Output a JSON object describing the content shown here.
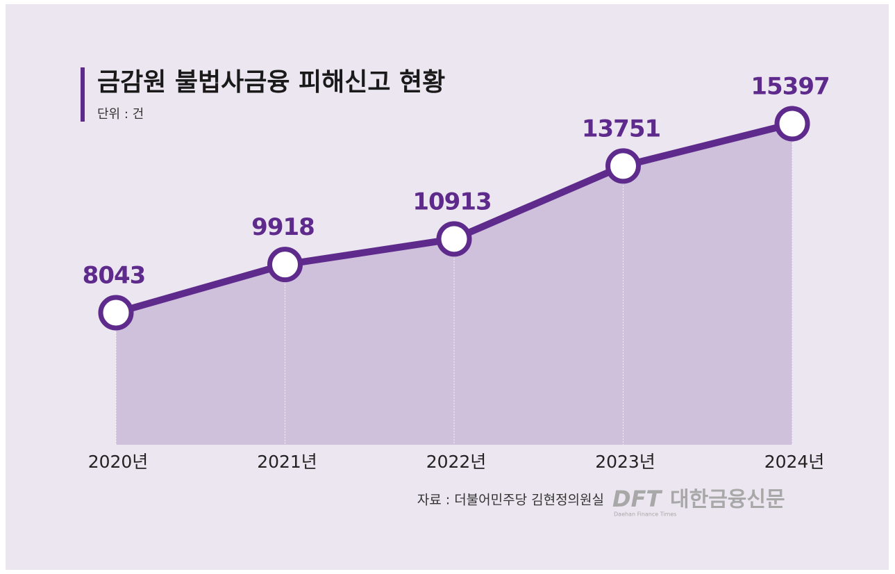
{
  "chart_data": {
    "type": "area-line",
    "title": "금감원 불법사금융 피해신고 현황",
    "subtitle": "단위 : 건",
    "categories": [
      "2020년",
      "2021년",
      "2022년",
      "2023년",
      "2024년"
    ],
    "values": [
      8043,
      9918,
      10913,
      13751,
      15397
    ],
    "color": "#5e2a8c",
    "area_color": "#cfc0dc",
    "source": "자료 : 더불어민주당 김현정의원실",
    "logo": {
      "mark": "DFT",
      "name": "대한금융신문",
      "tagline": "Daehan Finance Times"
    }
  }
}
